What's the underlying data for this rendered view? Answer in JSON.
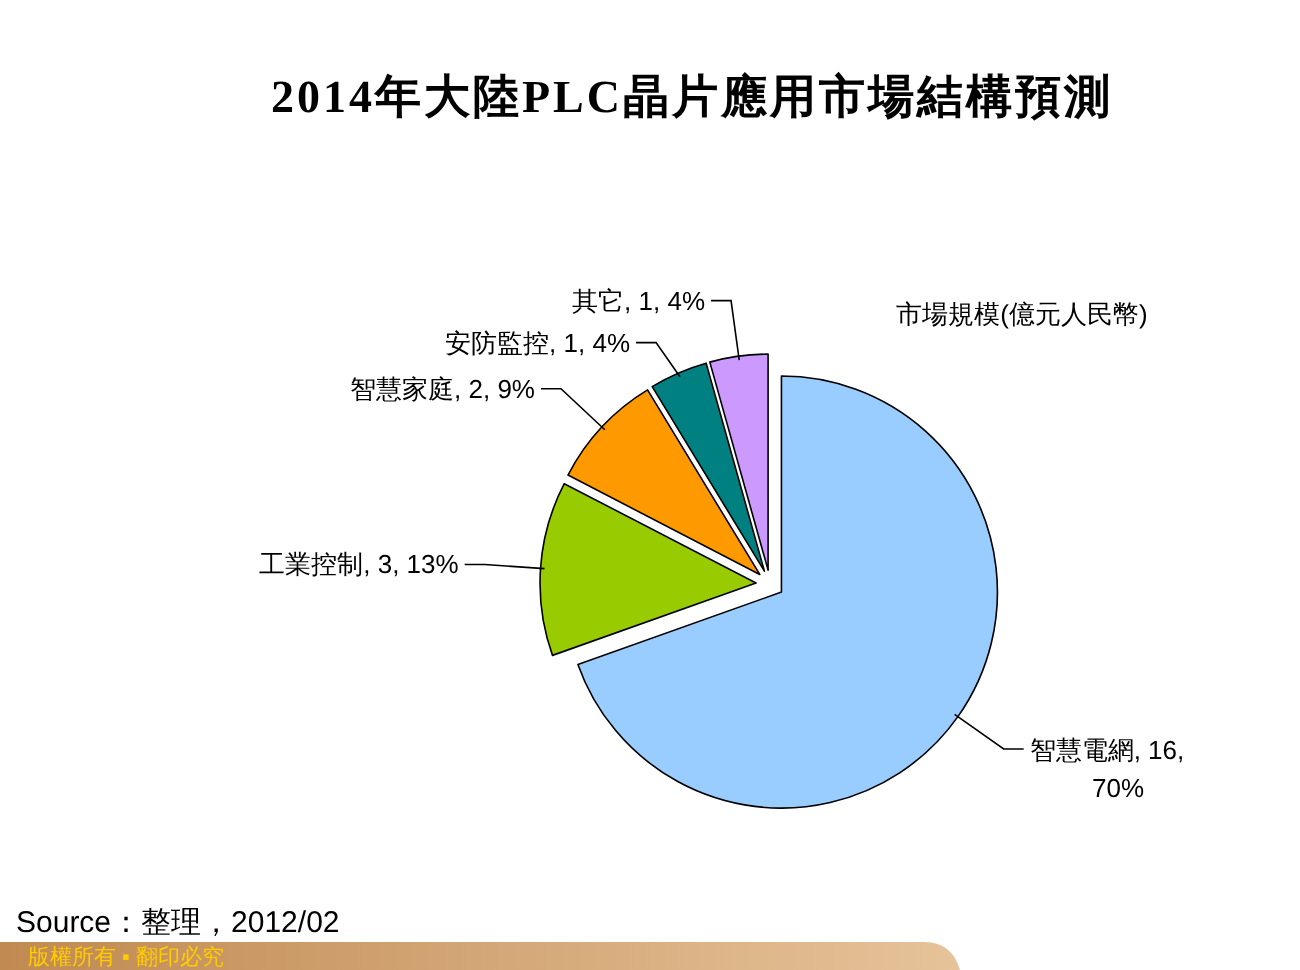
{
  "chart_data": {
    "type": "pie",
    "title": "2014年大陸PLC晶片應用市場結構預測",
    "subtitle": "市場規模(億元人民幣)",
    "categories": [
      "智慧電網",
      "工業控制",
      "智慧家庭",
      "安防監控",
      "其它"
    ],
    "values": [
      16,
      3,
      2,
      1,
      1
    ],
    "colors": [
      "#99ccff",
      "#99cc00",
      "#ff9900",
      "#008080",
      "#cc99ff"
    ],
    "value_labels": [
      "16, 70%",
      "3, 13%",
      "2, 9%",
      "1, 4%",
      "1, 4%"
    ],
    "annotations": [
      "Source：整理，2012/02",
      "版權所有 ▪ 翻印必究"
    ]
  }
}
